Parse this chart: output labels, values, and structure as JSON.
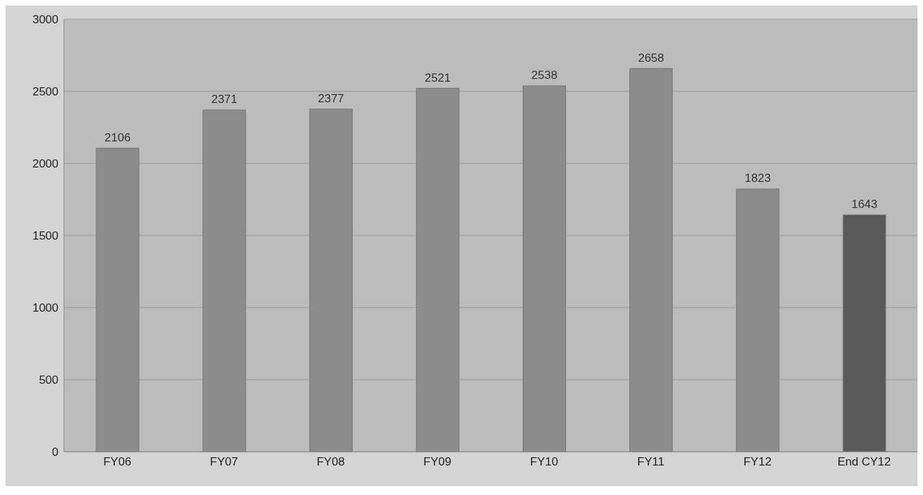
{
  "chart_data": {
    "type": "bar",
    "categories": [
      "FY06",
      "FY07",
      "FY08",
      "FY09",
      "FY10",
      "FY11",
      "FY12",
      "End CY12"
    ],
    "values": [
      2106,
      2371,
      2377,
      2521,
      2538,
      2658,
      1823,
      1643
    ],
    "colors": [
      "#8c8c8c",
      "#8c8c8c",
      "#8c8c8c",
      "#8c8c8c",
      "#8c8c8c",
      "#8c8c8c",
      "#8c8c8c",
      "#5a5a5a"
    ],
    "ylim": [
      0,
      3000
    ],
    "yticks": [
      0,
      500,
      1000,
      1500,
      2000,
      2500,
      3000
    ],
    "grid": "y",
    "data_labels": true
  }
}
